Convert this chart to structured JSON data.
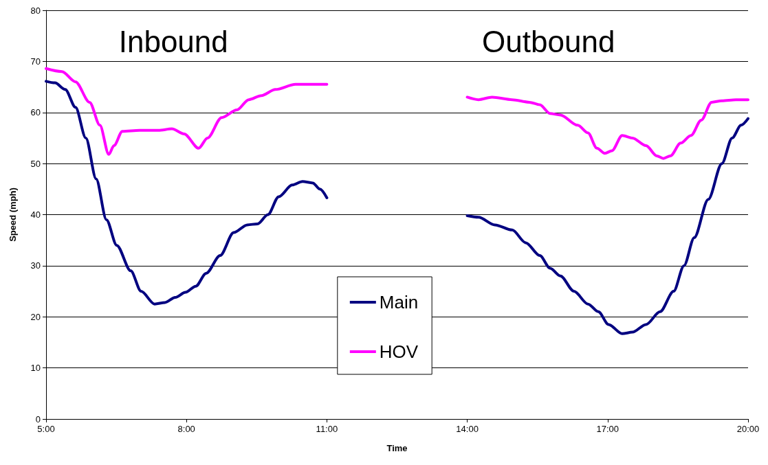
{
  "chart_data": {
    "type": "line",
    "xlabel": "Time",
    "ylabel": "Speed (mph)",
    "xlim": [
      5,
      20
    ],
    "xticks": [
      {
        "value": 5,
        "label": "5:00"
      },
      {
        "value": 8,
        "label": "8:00"
      },
      {
        "value": 11,
        "label": "11:00"
      },
      {
        "value": 14,
        "label": "14:00"
      },
      {
        "value": 17,
        "label": "17:00"
      },
      {
        "value": 20,
        "label": "20:00"
      }
    ],
    "ylim": [
      0,
      80
    ],
    "yticks": [
      0,
      10,
      20,
      30,
      40,
      50,
      60,
      70,
      80
    ],
    "grid": "y",
    "legend": "bottom",
    "marker": "none",
    "line_style": "solid",
    "annotations": [
      "Inbound",
      "Outbound"
    ],
    "series": [
      {
        "name": "Main",
        "color": "#000080",
        "x": [
          5,
          5.19,
          5.41,
          5.63,
          5.85,
          6.07,
          6.29,
          6.51,
          6.81,
          7.03,
          7.32,
          7.54,
          7.76,
          7.98,
          8.2,
          8.42,
          8.72,
          9.01,
          9.3,
          9.52,
          9.74,
          9.97,
          10.26,
          10.48,
          10.7,
          10.85,
          11,
          12.5,
          14,
          14.24,
          14.59,
          14.96,
          15.25,
          15.55,
          15.77,
          15.99,
          16.28,
          16.58,
          16.8,
          17.02,
          17.31,
          17.53,
          17.82,
          18.12,
          18.41,
          18.63,
          18.85,
          19.15,
          19.44,
          19.66,
          19.85,
          20
        ],
        "values": [
          66.1,
          65.8,
          64.5,
          61,
          55,
          47,
          39,
          34,
          29,
          25,
          22.5,
          22.8,
          23.8,
          24.8,
          26,
          28.5,
          32,
          36.5,
          38,
          38.2,
          40,
          43.5,
          45.8,
          46.5,
          46.2,
          45,
          43.3,
          null,
          39.8,
          39.5,
          38,
          37,
          34.5,
          32,
          29.5,
          28,
          25,
          22.5,
          21,
          18.5,
          16.7,
          17,
          18.5,
          21,
          25,
          30,
          35.5,
          43,
          50,
          55,
          57.5,
          58.8
        ]
      },
      {
        "name": "HOV",
        "color": "#ff00ff",
        "x": [
          5,
          5.34,
          5.63,
          5.93,
          6.15,
          6.34,
          6.45,
          6.63,
          7.0,
          7.4,
          7.69,
          7.95,
          8.26,
          8.45,
          8.75,
          9.08,
          9.33,
          9.6,
          9.9,
          10.33,
          11,
          12.5,
          14,
          14.24,
          14.53,
          14.96,
          15.33,
          15.55,
          15.77,
          15.99,
          16.36,
          16.58,
          16.77,
          16.94,
          17.09,
          17.31,
          17.53,
          17.82,
          18.05,
          18.19,
          18.34,
          18.56,
          18.78,
          19,
          19.22,
          19.44,
          19.74,
          20
        ],
        "values": [
          68.6,
          68,
          66,
          62,
          57.5,
          51.8,
          53.5,
          56.3,
          56.5,
          56.5,
          56.8,
          55.8,
          53,
          55,
          59,
          60.5,
          62.5,
          63.3,
          64.5,
          65.5,
          65.5,
          null,
          63,
          62.5,
          63,
          62.5,
          62,
          61.5,
          59.8,
          59.5,
          57.5,
          56,
          53,
          52,
          52.5,
          55.5,
          55,
          53.5,
          51.5,
          51,
          51.5,
          54,
          55.5,
          58.5,
          62,
          62.3,
          62.5,
          62.5
        ]
      }
    ]
  }
}
